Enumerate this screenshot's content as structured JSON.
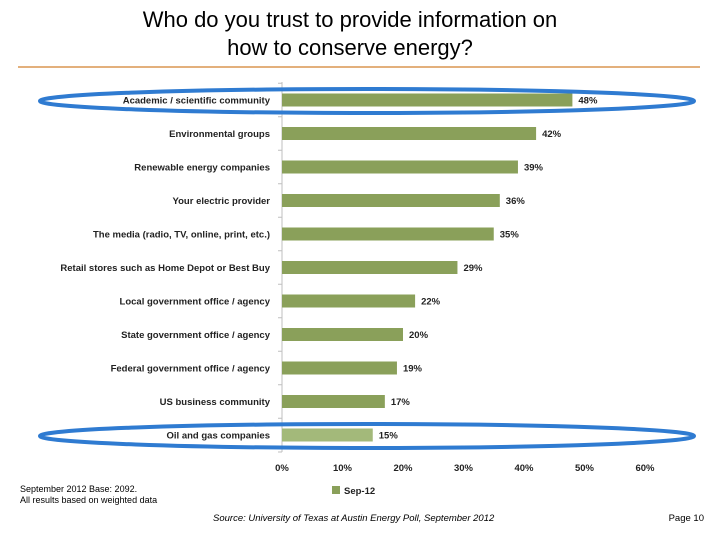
{
  "page": {
    "title_line1": "Who do you trust to provide information on",
    "title_line2": "how to conserve energy?",
    "footnote_line1": "September 2012 Base: 2092.",
    "footnote_line2": "All results based on weighted data",
    "source": "Source: University of Texas at Austin Energy Poll, September 2012",
    "page_number": "Page 10"
  },
  "colors": {
    "bar": "#8aa05a",
    "bar_light": "#a3b97a",
    "highlight_ellipse": "#2f7bd1",
    "rule": "#e3b07c"
  },
  "chart_data": {
    "type": "bar",
    "orientation": "horizontal",
    "title": "Who do you trust to provide information on how to conserve energy?",
    "categories": [
      "Academic / scientific community",
      "Environmental groups",
      "Renewable energy companies",
      "Your electric provider",
      "The media (radio, TV, online, print, etc.)",
      "Retail stores such as Home Depot or Best Buy",
      "Local government office / agency",
      "State government office / agency",
      "Federal government office / agency",
      "US business community",
      "Oil and gas companies"
    ],
    "series": [
      {
        "name": "Sep-12",
        "values": [
          48,
          42,
          39,
          36,
          35,
          29,
          22,
          20,
          19,
          17,
          15
        ]
      }
    ],
    "data_labels": [
      "48%",
      "42%",
      "39%",
      "36%",
      "35%",
      "29%",
      "22%",
      "20%",
      "19%",
      "17%",
      "15%"
    ],
    "xlim": [
      0,
      60
    ],
    "xticks": [
      0,
      10,
      20,
      30,
      40,
      50,
      60
    ],
    "xtick_labels": [
      "0%",
      "10%",
      "20%",
      "30%",
      "40%",
      "50%",
      "60%"
    ],
    "legend": "bottom-center",
    "highlighted_categories": [
      "Academic / scientific community",
      "Oil and gas companies"
    ]
  }
}
